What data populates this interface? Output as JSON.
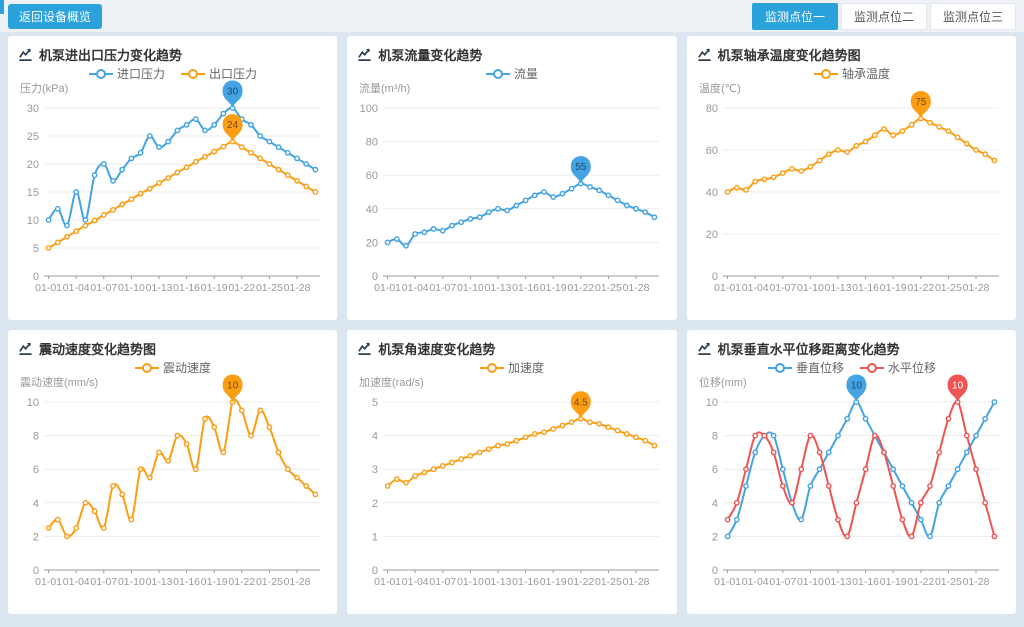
{
  "page": {
    "back_button": "返回设备概览",
    "monitor_tabs": [
      {
        "label": "监测点位一",
        "active": true
      },
      {
        "label": "监测点位二",
        "active": false
      },
      {
        "label": "监测点位三",
        "active": false
      }
    ]
  },
  "colors": {
    "accent": "#2aa2dc",
    "blue": "#43a3e3",
    "orange": "#fb9e14",
    "red": "#ed5452",
    "grid_line": "#ececec",
    "axis": "#999999",
    "legend_text": "#666666",
    "title_text": "#333333",
    "icon": "#2c3e50"
  },
  "categories": [
    "01-01",
    "01-02",
    "01-03",
    "01-04",
    "01-05",
    "01-06",
    "01-07",
    "01-08",
    "01-09",
    "01-10",
    "01-11",
    "01-12",
    "01-13",
    "01-14",
    "01-15",
    "01-16",
    "01-17",
    "01-18",
    "01-19",
    "01-20",
    "01-21",
    "01-22",
    "01-23",
    "01-24",
    "01-25",
    "01-26",
    "01-27",
    "01-28",
    "01-29",
    "01-30"
  ],
  "x_tick_labels": [
    "01-01",
    "01-04",
    "01-07",
    "01-10",
    "01-13",
    "01-16",
    "01-19",
    "01-22",
    "01-25",
    "01-28"
  ],
  "chart_data": [
    {
      "type": "line",
      "title": "机泵进出口压力变化趋势",
      "ylabel": "压力(kPa)",
      "ymax": 30,
      "yticks": [
        0,
        5,
        10,
        15,
        20,
        25,
        30
      ],
      "series": [
        {
          "name": "进口压力",
          "color": "#43a3e3",
          "pin_label": "30",
          "pin_text": "rgba(0,0,0,0.55)",
          "values": [
            10,
            12,
            9,
            15,
            10,
            18,
            20,
            17,
            19,
            21,
            22,
            25,
            23,
            24,
            26,
            27,
            28,
            26,
            27,
            29,
            30,
            28,
            27,
            25,
            24,
            23,
            22,
            21,
            20,
            19
          ]
        },
        {
          "name": "出口压力",
          "color": "#fb9e14",
          "pin_label": "24",
          "pin_text": "rgba(0,0,0,0.55)",
          "values": [
            5,
            6,
            7,
            8,
            9,
            9.9,
            10.9,
            11.8,
            12.8,
            13.7,
            14.7,
            15.6,
            16.6,
            17.5,
            18.5,
            19.4,
            20.4,
            21.3,
            22.2,
            23.1,
            24,
            23,
            22,
            21,
            20,
            19,
            18,
            17,
            16,
            15
          ]
        }
      ]
    },
    {
      "type": "line",
      "title": "机泵流量变化趋势",
      "ylabel": "流量(m³/h)",
      "ymax": 100,
      "yticks": [
        0,
        20,
        40,
        60,
        80,
        100
      ],
      "series": [
        {
          "name": "流量",
          "color": "#43a3e3",
          "pin_label": "55",
          "pin_text": "rgba(0,0,0,0.55)",
          "values": [
            20,
            22,
            18,
            25,
            26,
            28,
            27,
            30,
            32,
            34,
            35,
            38,
            40,
            39,
            42,
            45,
            48,
            50,
            47,
            49,
            52,
            55,
            53,
            51,
            48,
            45,
            42,
            40,
            38,
            35
          ]
        }
      ]
    },
    {
      "type": "line",
      "title": "机泵轴承温度变化趋势图",
      "ylabel": "温度(℃)",
      "ymax": 80,
      "yticks": [
        0,
        20,
        40,
        60,
        80
      ],
      "series": [
        {
          "name": "轴承温度",
          "color": "#fb9e14",
          "pin_label": "75",
          "pin_text": "rgba(0,0,0,0.55)",
          "values": [
            40,
            42,
            41,
            45,
            46,
            47,
            49,
            51,
            50,
            52,
            55,
            58,
            60,
            59,
            62,
            64,
            67,
            70,
            67,
            69,
            72,
            75,
            73,
            71,
            69,
            66,
            63,
            60,
            58,
            55
          ]
        }
      ]
    },
    {
      "type": "line",
      "title": "震动速度变化趋势图",
      "ylabel": "震动速度(mm/s)",
      "ymax": 10,
      "yticks": [
        0,
        2,
        4,
        6,
        8,
        10
      ],
      "series": [
        {
          "name": "震动速度",
          "color": "#fb9e14",
          "pin_label": "10",
          "pin_text": "rgba(0,0,0,0.55)",
          "values": [
            2.5,
            3,
            2,
            2.5,
            4,
            3.5,
            2.5,
            5,
            4.5,
            3,
            6,
            5.5,
            7,
            6.5,
            8,
            7.5,
            6,
            9,
            8.5,
            7,
            10,
            9.5,
            8,
            9.5,
            8.5,
            7,
            6,
            5.5,
            5,
            4.5
          ]
        }
      ]
    },
    {
      "type": "line",
      "title": "机泵角速度变化趋势",
      "ylabel": "加速度(rad/s)",
      "ymax": 5,
      "yticks": [
        0,
        1,
        2,
        3,
        4,
        5
      ],
      "series": [
        {
          "name": "加速度",
          "color": "#fb9e14",
          "pin_label": "4.5",
          "pin_text": "rgba(0,0,0,0.55)",
          "values": [
            2.5,
            2.7,
            2.6,
            2.8,
            2.9,
            3,
            3.1,
            3.2,
            3.3,
            3.4,
            3.5,
            3.6,
            3.7,
            3.75,
            3.85,
            3.95,
            4.05,
            4.1,
            4.2,
            4.3,
            4.4,
            4.5,
            4.4,
            4.35,
            4.25,
            4.15,
            4.05,
            3.95,
            3.85,
            3.7
          ]
        }
      ]
    },
    {
      "type": "line",
      "title": "机泵垂直水平位移距离变化趋势",
      "ylabel": "位移(mm)",
      "ymax": 10,
      "yticks": [
        0,
        2,
        4,
        6,
        8,
        10
      ],
      "series": [
        {
          "name": "垂直位移",
          "color": "#43a3e3",
          "pin_label": "10",
          "pin_text": "rgba(0,0,0,0.55)",
          "values": [
            2,
            3,
            5,
            7,
            8,
            8,
            6,
            4,
            3,
            5,
            6,
            7,
            8,
            9,
            10,
            9,
            8,
            7,
            6,
            5,
            4,
            3,
            2,
            4,
            5,
            6,
            7,
            8,
            9,
            10
          ]
        },
        {
          "name": "水平位移",
          "color": "#ed5452",
          "pin_label": "10",
          "pin_text": "#ffffff",
          "values": [
            3,
            4,
            6,
            8,
            8,
            7,
            5,
            4,
            6,
            8,
            7,
            5,
            3,
            2,
            4,
            6,
            8,
            7,
            5,
            3,
            2,
            4,
            5,
            7,
            9,
            10,
            8,
            6,
            4,
            2
          ]
        }
      ]
    }
  ]
}
